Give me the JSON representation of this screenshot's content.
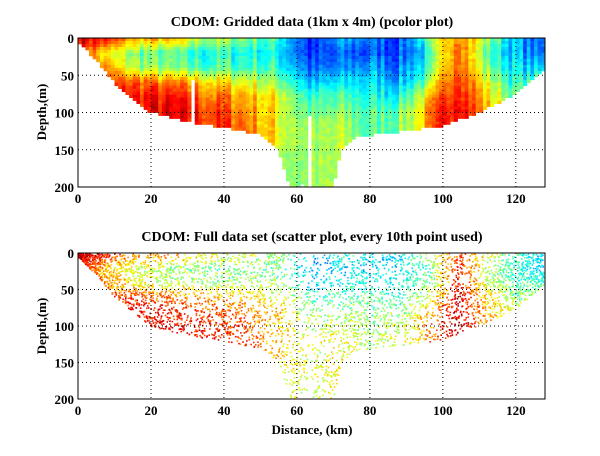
{
  "chart_data": [
    {
      "type": "heatmap",
      "title": "CDOM: Gridded data (1km x 4m) (pcolor plot)",
      "xlabel": "",
      "ylabel": "Depth,(m)",
      "xlim": [
        0,
        128
      ],
      "ylim": [
        200,
        0
      ],
      "xticks": [
        "0",
        "20",
        "40",
        "60",
        "80",
        "100",
        "120"
      ],
      "yticks": [
        "0",
        "50",
        "100",
        "150",
        "200"
      ],
      "grid": true,
      "colormap": "jet",
      "cell_size": "1km x 4m",
      "grid_x_km": [
        0,
        8,
        16,
        24,
        32,
        40,
        48,
        56,
        64,
        72,
        80,
        88,
        96,
        104,
        112,
        120,
        128
      ],
      "grid_depth_m": [
        0,
        20,
        40,
        60,
        80,
        100,
        120,
        140,
        160,
        180,
        200
      ],
      "relative_value_columns": [
        [
          0.95,
          0.85,
          0.8,
          0.8
        ],
        [
          0.85,
          0.6,
          0.7,
          0.8,
          0.85
        ],
        [
          0.7,
          0.5,
          0.55,
          0.8,
          0.85,
          0.88
        ],
        [
          0.7,
          0.45,
          0.5,
          0.75,
          0.85,
          0.88
        ],
        [
          0.6,
          0.4,
          0.45,
          0.7,
          0.8,
          0.85,
          0.85
        ],
        [
          0.55,
          0.4,
          0.45,
          0.65,
          0.75,
          0.8,
          0.82
        ],
        [
          0.5,
          0.4,
          0.45,
          0.6,
          0.7,
          0.72,
          0.75,
          0.75
        ],
        [
          0.4,
          0.35,
          0.4,
          0.5,
          0.6,
          0.6,
          0.6,
          0.6,
          0.55,
          0.55,
          0.55
        ],
        [
          0.12,
          0.15,
          0.2,
          0.3,
          0.4,
          0.45,
          0.5,
          0.5,
          0.5,
          0.5,
          0.5
        ],
        [
          0.3,
          0.2,
          0.25,
          0.35,
          0.45,
          0.5,
          0.55,
          0.55
        ],
        [
          0.25,
          0.2,
          0.3,
          0.35,
          0.4,
          0.45,
          0.45
        ],
        [
          0.2,
          0.2,
          0.25,
          0.3,
          0.4,
          0.5,
          0.5
        ],
        [
          0.45,
          0.35,
          0.4,
          0.5,
          0.65,
          0.7
        ],
        [
          0.8,
          0.85,
          0.85,
          0.9,
          0.92,
          0.95
        ],
        [
          0.55,
          0.45,
          0.5,
          0.6,
          0.65,
          0.7
        ],
        [
          0.3,
          0.3,
          0.35,
          0.4,
          0.5
        ],
        [
          0.2,
          0.2,
          0.3,
          0.5
        ]
      ],
      "bottom_profile": {
        "x_km": [
          0,
          1,
          5,
          10,
          20,
          30,
          40,
          50,
          55,
          58,
          70,
          72,
          76,
          90,
          100,
          110,
          120,
          125,
          128
        ],
        "max_depth_m": [
          5,
          10,
          30,
          60,
          100,
          112,
          120,
          130,
          150,
          198,
          198,
          150,
          133,
          125,
          118,
          100,
          75,
          55,
          40
        ]
      }
    },
    {
      "type": "scatter",
      "title": "CDOM: Full data set (scatter plot, every 10th point used)",
      "xlabel": "Distance, (km)",
      "ylabel": "Depth,(m)",
      "xlim": [
        0,
        128
      ],
      "ylim": [
        200,
        0
      ],
      "xticks": [
        "0",
        "20",
        "40",
        "60",
        "80",
        "100",
        "120"
      ],
      "yticks": [
        "0",
        "50",
        "100",
        "150",
        "200"
      ],
      "grid": true,
      "colormap": "jet"
    }
  ]
}
